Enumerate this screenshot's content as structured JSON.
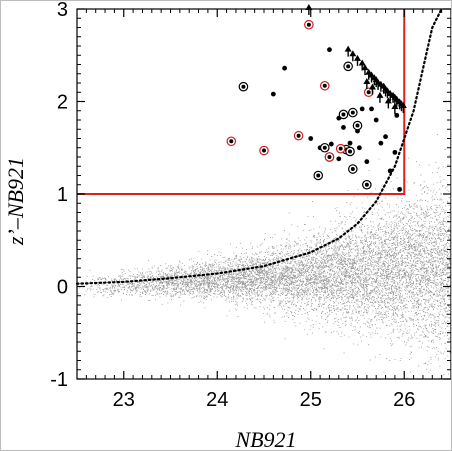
{
  "chart_data": {
    "type": "scatter",
    "xlabel": "NB921",
    "ylabel": "z’–NB921",
    "xlim": [
      22.5,
      26.5
    ],
    "ylim": [
      -1,
      3
    ],
    "xticks": [
      "23",
      "24",
      "25",
      "26"
    ],
    "yticks": [
      "-1",
      "0",
      "1",
      "2",
      "3"
    ],
    "grid": false,
    "background_cloud": {
      "description_color": "#9a9a9a",
      "center_relation": "y rises from about 0.0 at 22.5 to about 0.2 at 26.5, scatter widening with magnitude"
    },
    "selection_box": {
      "color": "#e02020",
      "x_max": 26.0,
      "y_min": 1.0,
      "y_max": 3.0
    },
    "limit_curve": {
      "style": "dotted",
      "color": "#000000",
      "x": [
        22.5,
        23.0,
        23.5,
        24.0,
        24.5,
        25.0,
        25.3,
        25.5,
        25.7,
        25.9,
        26.1,
        26.2,
        26.3,
        26.4
      ],
      "y": [
        0.03,
        0.05,
        0.09,
        0.14,
        0.22,
        0.37,
        0.52,
        0.68,
        0.92,
        1.3,
        1.9,
        2.35,
        2.8,
        3.0
      ]
    },
    "series": [
      {
        "marker": "filled-dot",
        "color": "#000000",
        "points": [
          [
            24.6,
            2.08
          ],
          [
            24.72,
            2.36
          ],
          [
            25.0,
            1.6
          ],
          [
            25.2,
            2.56
          ],
          [
            25.22,
            1.54
          ],
          [
            25.3,
            1.82
          ],
          [
            25.35,
            1.72
          ],
          [
            25.42,
            1.55
          ],
          [
            25.5,
            1.68
          ],
          [
            25.52,
            1.5
          ],
          [
            25.6,
            1.35
          ],
          [
            25.7,
            1.8
          ],
          [
            25.75,
            1.55
          ],
          [
            25.8,
            1.62
          ],
          [
            25.85,
            1.25
          ],
          [
            25.9,
            1.45
          ],
          [
            25.92,
            1.85
          ],
          [
            25.95,
            1.05
          ],
          [
            25.3,
            1.38
          ],
          [
            25.1,
            1.5
          ],
          [
            25.55,
            1.92
          ],
          [
            25.65,
            1.92
          ]
        ]
      },
      {
        "marker": "black-ring",
        "color": "#000000",
        "points": [
          [
            24.28,
            2.16
          ],
          [
            25.15,
            1.5
          ],
          [
            25.35,
            1.86
          ],
          [
            25.38,
            1.48
          ],
          [
            25.45,
            1.27
          ],
          [
            25.6,
            1.1
          ],
          [
            25.08,
            1.2
          ],
          [
            25.45,
            1.88
          ],
          [
            25.5,
            1.74
          ],
          [
            25.4,
            2.38
          ],
          [
            25.42,
            1.46
          ],
          [
            25.2,
            1.4
          ]
        ]
      },
      {
        "marker": "red-ring",
        "color": "#d02020",
        "points": [
          [
            24.15,
            1.57
          ],
          [
            24.5,
            1.47
          ],
          [
            24.87,
            1.63
          ],
          [
            24.98,
            2.83
          ],
          [
            25.15,
            2.17
          ],
          [
            25.2,
            1.4
          ],
          [
            25.32,
            1.49
          ],
          [
            25.62,
            2.1
          ]
        ]
      },
      {
        "marker": "upper-limit-arrow",
        "color": "#000000",
        "points": [
          [
            24.98,
            3.0
          ],
          [
            25.4,
            2.55
          ],
          [
            25.45,
            2.5
          ],
          [
            25.5,
            2.45
          ],
          [
            25.55,
            2.4
          ],
          [
            25.58,
            2.35
          ],
          [
            25.62,
            2.3
          ],
          [
            25.65,
            2.27
          ],
          [
            25.68,
            2.24
          ],
          [
            25.7,
            2.22
          ],
          [
            25.72,
            2.19
          ],
          [
            25.75,
            2.17
          ],
          [
            25.78,
            2.15
          ],
          [
            25.8,
            2.12
          ],
          [
            25.82,
            2.1
          ],
          [
            25.85,
            2.07
          ],
          [
            25.88,
            2.05
          ],
          [
            25.9,
            2.03
          ],
          [
            25.92,
            2.01
          ],
          [
            25.95,
            1.98
          ],
          [
            25.97,
            1.96
          ],
          [
            25.99,
            1.94
          ],
          [
            25.6,
            2.2
          ],
          [
            25.66,
            2.14
          ],
          [
            25.74,
            2.05
          ],
          [
            25.83,
            1.99
          ],
          [
            25.9,
            1.93
          ]
        ]
      }
    ]
  }
}
